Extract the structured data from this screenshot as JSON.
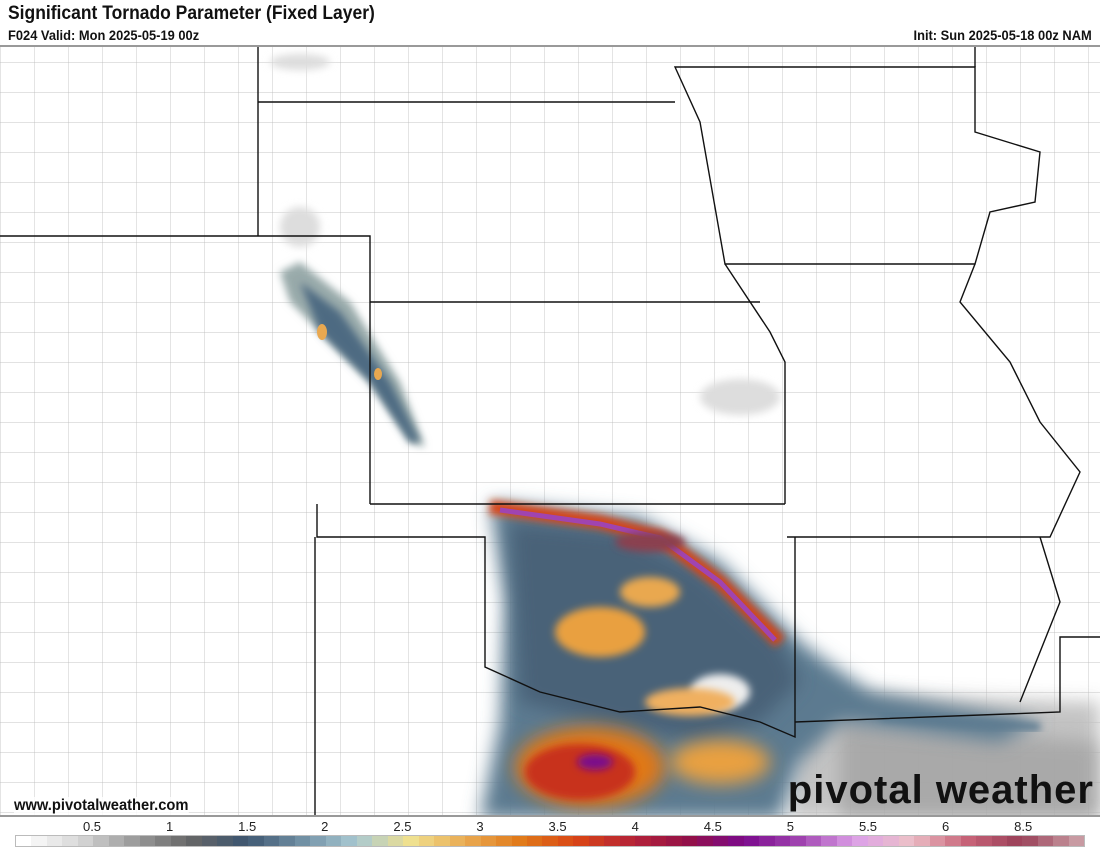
{
  "header": {
    "title": "Significant Tornado Parameter (Fixed Layer)",
    "valid": "F024 Valid: Mon 2025-05-19 00z",
    "init": "Init: Sun 2025-05-18 00z NAM"
  },
  "footer": {
    "website": "www.pivotalweather.com",
    "logo": "pivotal weather"
  },
  "colorbar": {
    "ticks": [
      "0.5",
      "1",
      "1.5",
      "2",
      "2.5",
      "3",
      "3.5",
      "4",
      "4.5",
      "5",
      "5.5",
      "6",
      "8.5"
    ],
    "stops": [
      "#ffffff",
      "#d8d8d8",
      "#9a9a9a",
      "#666666",
      "#3d5670",
      "#6f8ea3",
      "#a9c9d2",
      "#f0e08e",
      "#e9a850",
      "#e07818",
      "#d84416",
      "#b42238",
      "#921048",
      "#7a0a8c",
      "#a044b0",
      "#dca0e8",
      "#ecc0c8",
      "#c86478",
      "#9a4058",
      "#c89aa2"
    ]
  }
}
